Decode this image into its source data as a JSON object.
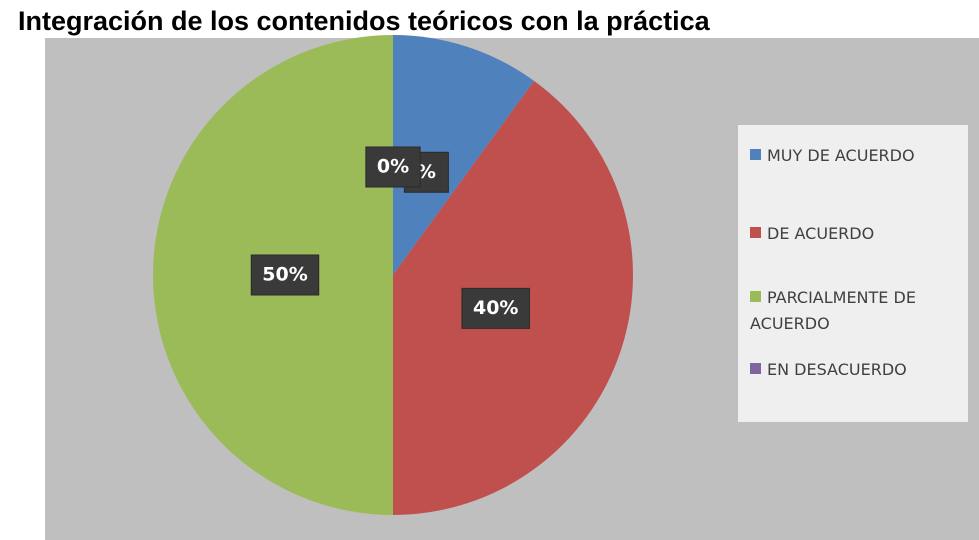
{
  "chart_data": {
    "type": "pie",
    "title": "Integración de los contenidos teóricos con la práctica",
    "categories": [
      "MUY DE ACUERDO",
      "DE ACUERDO",
      "PARCIALMENTE DE ACUERDO",
      "EN DESACUERDO"
    ],
    "values": [
      10,
      40,
      50,
      0
    ],
    "value_labels": [
      "%",
      "40%",
      "50%",
      "0%"
    ],
    "colors": [
      "#4f81bd",
      "#c0504d",
      "#9bbb59",
      "#8064a2"
    ],
    "legend": "right"
  }
}
